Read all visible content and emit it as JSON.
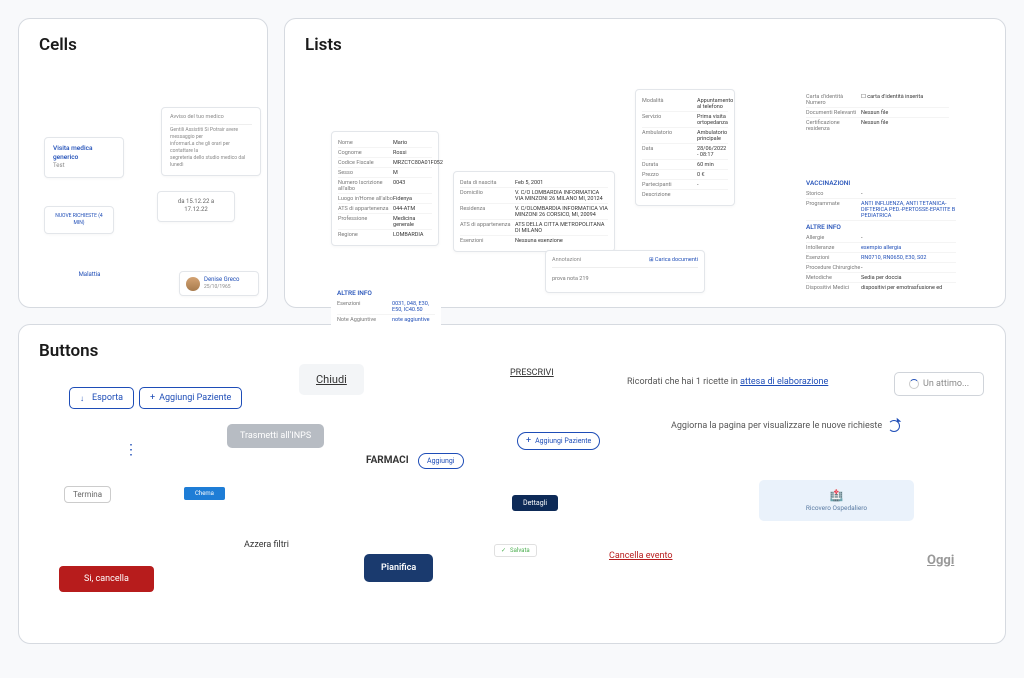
{
  "sections": {
    "cells": "Cells",
    "lists": "Lists",
    "buttons": "Buttons"
  },
  "cells": {
    "msg": {
      "header": "Avviso del tuo medico",
      "l1": "Gentili Assistiti Si Potrair avere messaggio per",
      "l2": "informarLa che gli orari per contattare la",
      "l3": "segreteria dello studio medico dal lunedì"
    },
    "visit": {
      "title": "Visita medica generico",
      "sub": "Test"
    },
    "dates": "da 15.12.22 a 17.12.22",
    "nuove": "NUOVE RICHIESTE (4 MIN)",
    "malattia": "Malattia",
    "avatar": {
      "name": "Denise Greco",
      "date": "25/10/1965"
    }
  },
  "lt1": {
    "Nome": "Mario",
    "Cognome": "Rossi",
    "Codice Fiscale": "MRZCTC80A01F052",
    "Sesso": "M",
    "Numero Iscrizione all'albo": "0043",
    "Luogo in'Home all'albo": "Fidenya",
    "ATS di appartenenza": "044-ATM",
    "Professione": "Medicina generale",
    "Regione": "LOMBARDIA"
  },
  "lt2": {
    "Data di nascita": "Feb 5, 2001",
    "Domicilio": "V. C/O LOMBARDIA INFORMATICA VIA MINZONI 26 MILANO MI, 20124",
    "Residenza": "V. C/OLOMBARDIA INFORMATICA VIA MINZONI 26 CORSICO, MI, 20094",
    "ATS di appartenenza": "ATS DELLA CITTA METROPOLITANA DI MILANO",
    "Esenzioni": "Nessuna esenzione"
  },
  "lt3": {
    "Modalità": "Appuntamento al telefono",
    "Servizio": "Prima visita ortopedanza",
    "Ambulatorio": "Ambulatorio principale",
    "Data": "28/06/2022 - 08:17",
    "Durata": "60 min",
    "Prezzo": "0 €",
    "Partecipanti": "-",
    "Descrizione": ""
  },
  "lt4": {
    "top_left": "Annotazioni",
    "top_right_icon": "⊞",
    "top_right": "Carica documenti",
    "line": "prova nota 219"
  },
  "lt5": {
    "Carta d'identità Numero": "☐ carta d'identità inserita",
    "Documenti Relevanti": "Nessun file",
    "Certificazione residenza": "Nessun file"
  },
  "lt6": {
    "hdr1": "VACCINAZIONI",
    "Storico": "-",
    "Programmate": "ANTI INFLUENZA, ANTI TETANICA-DIFTERICA PED.-PERTOSSE-EPATITE B PEDIATRICA",
    "hdr2": "ALTRE INFO",
    "Allergie": "-",
    "Intolleranze": "esempio allergia",
    "Esenzioni": "RN0710, RN0650, E30, S02",
    "Procedure Chirurgiche": "-",
    "Metodiche": "Sedia per doccia",
    "Dispositivi Medici": "dispositivi per emotrasfusione ed"
  },
  "lt7": {
    "hdr": "ALTRE INFO",
    "Esenzioni": "0031, 048, E30, E50, IC40.50",
    "Note Aggiuntive": "note aggiuntive"
  },
  "buttons": {
    "esporta": "Esporta",
    "aggiungi": "Aggiungi Paziente",
    "chiudi": "Chiudi",
    "prescrivi": "PRESCRIVI",
    "ricordati_pre": "Ricordati che hai 1 ricette in ",
    "ricordati_link": "attesa di elaborazione",
    "attimo": "Un attimo...",
    "trasmetti": "Trasmetti all'INPS",
    "aggiungi2": "Aggiungi Paziente",
    "aggiorna": "Aggiorna la pagina per visualizzare le nuove richieste",
    "farmaci": "FARMACI",
    "aggiungi3": "Aggiungi",
    "termina": "Termina",
    "chema": "Chema",
    "dettagli": "Dettagli",
    "ricovero": "Ricovero Ospedaliero",
    "azzera": "Azzera filtri",
    "salvato": "Salvata",
    "cancella_ev": "Cancella evento",
    "oggi": "Oggi",
    "si_cancella": "Si, cancella",
    "pianifica": "Pianifica"
  }
}
